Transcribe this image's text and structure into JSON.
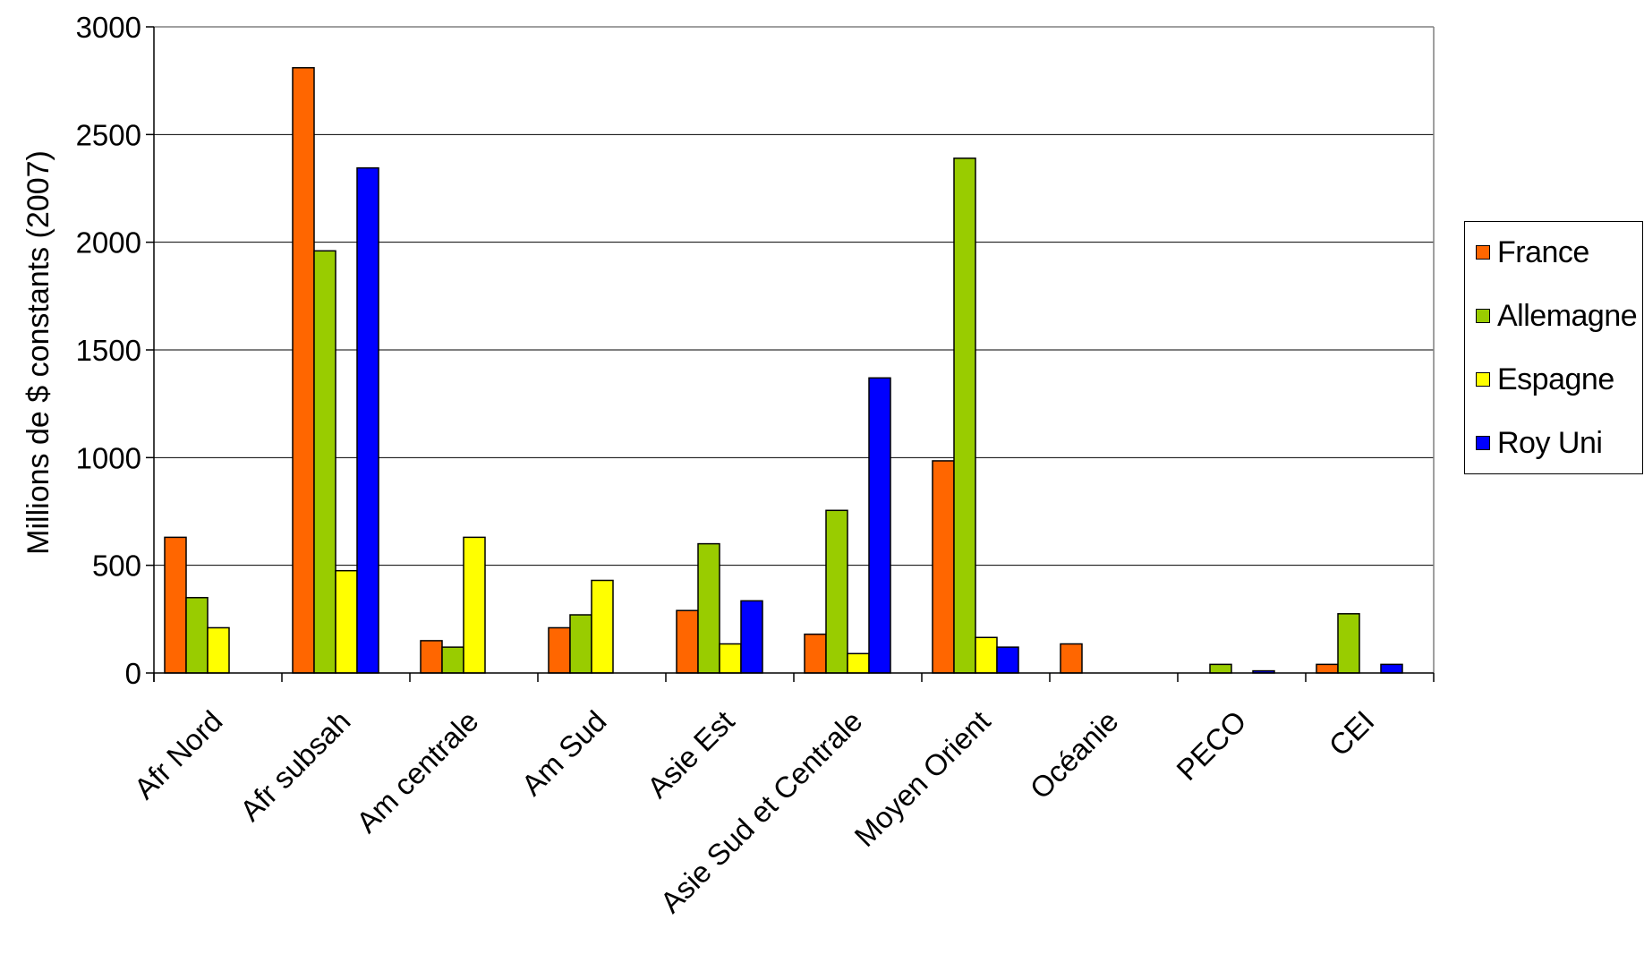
{
  "chart_data": {
    "type": "bar",
    "ylabel": "Millions de $ constants (2007)",
    "ylim": [
      0,
      3000
    ],
    "yticks": [
      0,
      500,
      1000,
      1500,
      2000,
      2500,
      3000
    ],
    "grid": true,
    "legend_position": "right",
    "categories": [
      "Afr Nord",
      "Afr subsah",
      "Am centrale",
      "Am Sud",
      "Asie Est",
      "Asie Sud et Centrale",
      "Moyen Orient",
      "Océanie",
      "PECO",
      "CEI"
    ],
    "series": [
      {
        "name": "France",
        "color": "#ff6600",
        "values": [
          630,
          2810,
          150,
          210,
          290,
          180,
          985,
          135,
          0,
          40
        ]
      },
      {
        "name": "Allemagne",
        "color": "#99cc00",
        "values": [
          350,
          1960,
          120,
          270,
          600,
          755,
          2390,
          0,
          40,
          275
        ]
      },
      {
        "name": "Espagne",
        "color": "#ffff00",
        "values": [
          210,
          475,
          630,
          430,
          135,
          90,
          165,
          0,
          0,
          0
        ]
      },
      {
        "name": "Roy Uni",
        "color": "#0000ff",
        "values": [
          0,
          2345,
          0,
          0,
          335,
          1370,
          120,
          0,
          10,
          40
        ]
      }
    ]
  }
}
